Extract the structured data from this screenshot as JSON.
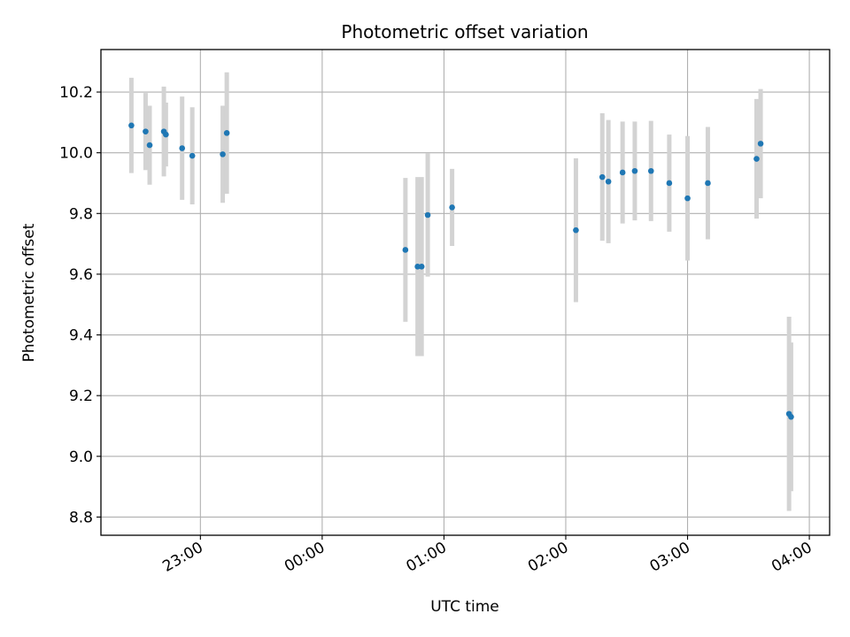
{
  "chart_data": {
    "type": "scatter",
    "title": "Photometric offset variation",
    "xlabel": "UTC time",
    "ylabel": "Photometric offset",
    "x_ticks": [
      "23:00",
      "00:00",
      "01:00",
      "02:00",
      "03:00",
      "04:00"
    ],
    "y_ticks": [
      "8.8",
      "9.0",
      "9.2",
      "9.4",
      "9.6",
      "9.8",
      "10.0",
      "10.2"
    ],
    "xlim": [
      "22:11",
      "04:10"
    ],
    "ylim": [
      8.74,
      10.34
    ],
    "grid": true,
    "marker_color": "#1f77b4",
    "errorbar_color": "#d3d3d3",
    "series": [
      {
        "points": [
          {
            "t": "22:26",
            "y": 10.09,
            "err": 0.157
          },
          {
            "t": "22:33",
            "y": 10.07,
            "err": 0.127
          },
          {
            "t": "22:35",
            "y": 10.025,
            "err": 0.13
          },
          {
            "t": "22:42",
            "y": 10.07,
            "err": 0.148
          },
          {
            "t": "22:43",
            "y": 10.06,
            "err": 0.105
          },
          {
            "t": "22:51",
            "y": 10.015,
            "err": 0.17
          },
          {
            "t": "22:56",
            "y": 9.99,
            "err": 0.16
          },
          {
            "t": "23:11",
            "y": 9.995,
            "err": 0.16
          },
          {
            "t": "23:13",
            "y": 10.065,
            "err": 0.2
          },
          {
            "t": "00:41",
            "y": 9.68,
            "err": 0.237
          },
          {
            "t": "00:47",
            "y": 9.625,
            "err": 0.295
          },
          {
            "t": "00:49",
            "y": 9.625,
            "err": 0.295
          },
          {
            "t": "00:52",
            "y": 9.795,
            "err": 0.203
          },
          {
            "t": "01:04",
            "y": 9.82,
            "err": 0.127
          },
          {
            "t": "02:05",
            "y": 9.745,
            "err": 0.237
          },
          {
            "t": "02:18",
            "y": 9.92,
            "err": 0.21
          },
          {
            "t": "02:21",
            "y": 9.905,
            "err": 0.203
          },
          {
            "t": "02:28",
            "y": 9.935,
            "err": 0.168
          },
          {
            "t": "02:34",
            "y": 9.94,
            "err": 0.163
          },
          {
            "t": "02:42",
            "y": 9.94,
            "err": 0.165
          },
          {
            "t": "02:51",
            "y": 9.9,
            "err": 0.16
          },
          {
            "t": "03:00",
            "y": 9.85,
            "err": 0.205
          },
          {
            "t": "03:10",
            "y": 9.9,
            "err": 0.185
          },
          {
            "t": "03:34",
            "y": 9.98,
            "err": 0.197
          },
          {
            "t": "03:36",
            "y": 10.03,
            "err": 0.18
          },
          {
            "t": "03:50",
            "y": 9.14,
            "err": 0.32
          },
          {
            "t": "03:51",
            "y": 9.13,
            "err": 0.245
          }
        ]
      }
    ]
  }
}
